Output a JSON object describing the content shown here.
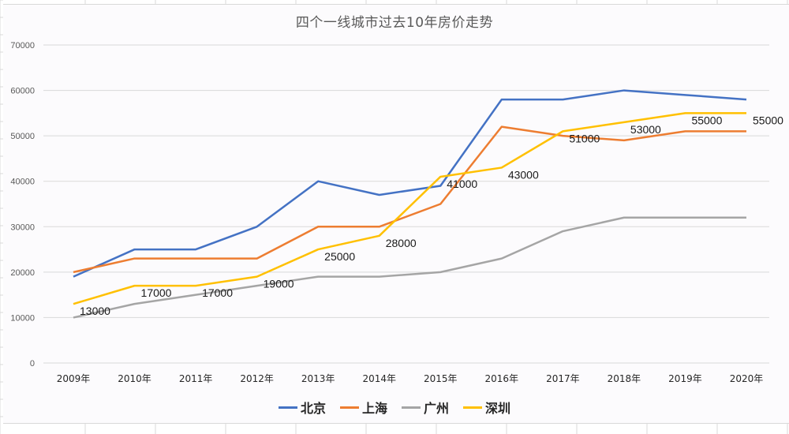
{
  "chart_data": {
    "type": "line",
    "title": "四个一线城市过去10年房价走势",
    "xlabel": "",
    "ylabel": "",
    "categories": [
      "2009年",
      "2010年",
      "2011年",
      "2012年",
      "2013年",
      "2014年",
      "2015年",
      "2016年",
      "2017年",
      "2018年",
      "2019年",
      "2020年"
    ],
    "ylim": [
      0,
      70000
    ],
    "yticks": [
      0,
      10000,
      20000,
      30000,
      40000,
      50000,
      60000,
      70000
    ],
    "grid": true,
    "legend_position": "bottom",
    "series": [
      {
        "name": "北京",
        "color": "#4472c4",
        "values": [
          19000,
          25000,
          25000,
          30000,
          40000,
          37000,
          39000,
          58000,
          58000,
          60000,
          59000,
          58000
        ]
      },
      {
        "name": "上海",
        "color": "#ed7d31",
        "values": [
          20000,
          23000,
          23000,
          23000,
          30000,
          30000,
          35000,
          52000,
          50000,
          49000,
          51000,
          51000
        ]
      },
      {
        "name": "广州",
        "color": "#a5a5a5",
        "values": [
          10000,
          13000,
          15000,
          17000,
          19000,
          19000,
          20000,
          23000,
          29000,
          32000,
          32000,
          32000
        ]
      },
      {
        "name": "深圳",
        "color": "#ffc000",
        "values": [
          13000,
          17000,
          17000,
          19000,
          25000,
          28000,
          41000,
          43000,
          51000,
          53000,
          55000,
          55000
        ],
        "data_labels": true
      }
    ]
  }
}
